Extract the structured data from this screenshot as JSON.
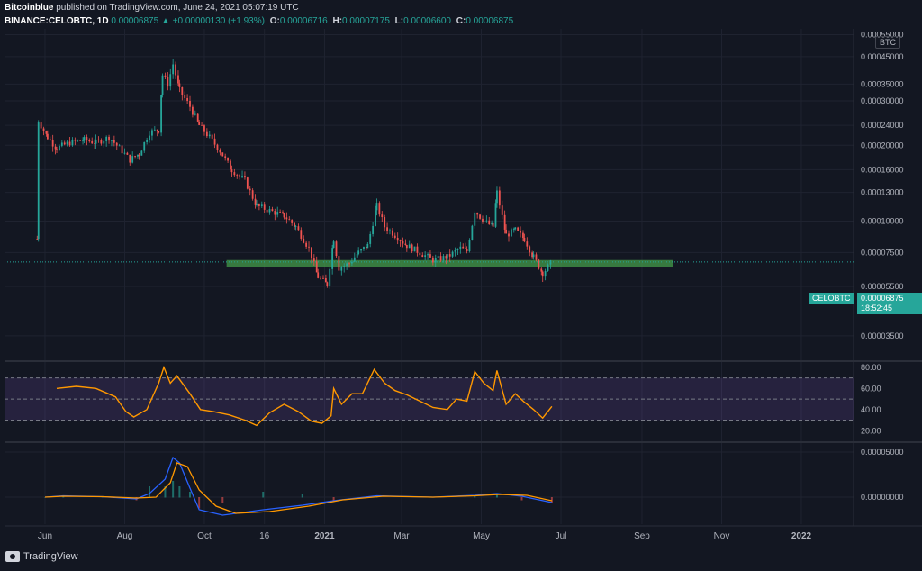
{
  "header": {
    "author": "Bitcoinblue",
    "published": "published on TradingView.com, June 24, 2021 05:07:19 UTC",
    "symbol": "BINANCE:CELOBTC, 1D",
    "last": "0.00006875",
    "change": "+0.00000130 (+1.93%)",
    "o_label": "O:",
    "o_value": "0.00006716",
    "h_label": "H:",
    "h_value": "0.00007175",
    "l_label": "L:",
    "l_value": "0.00006600",
    "c_label": "C:",
    "c_value": "0.00006875",
    "change_icon": "triangle-up-icon"
  },
  "axis": {
    "currency": "BTC",
    "price_labels": [
      "0.00055000",
      "0.00045000",
      "0.00035000",
      "0.00030000",
      "0.00024000",
      "0.00020000",
      "0.00016000",
      "0.00013000",
      "0.00010000",
      "0.00007500",
      "0.00005500",
      "0.00003500"
    ],
    "rsi_labels": [
      "80.00",
      "60.00",
      "40.00",
      "20.00"
    ],
    "macd_labels": [
      "0.00005000",
      "0.00000000"
    ],
    "time_labels": [
      "Jun",
      "Aug",
      "Oct",
      "16",
      "2021",
      "Mar",
      "May",
      "Jul",
      "Sep",
      "Nov",
      "2022"
    ]
  },
  "price_tag": {
    "symbol": "CELOBTC",
    "value": "0.00006875",
    "countdown": "18:52:45"
  },
  "footer": {
    "brand": "TradingView",
    "brand_icon": "tradingview-logo-icon"
  },
  "colors": {
    "background": "#131722",
    "up": "#26a69a",
    "down": "#ef5350",
    "rsi_line": "#ff9800",
    "rsi_band": "#7e57c2",
    "support_zone": "#4caf50",
    "macd_line": "#2962ff",
    "signal_line": "#ff9800"
  },
  "chart_data": [
    {
      "type": "candlestick",
      "scale": "log",
      "symbol": "BINANCE:CELOBTC",
      "interval": "1D",
      "x_ticks": [
        "Jun",
        "Aug",
        "Oct",
        "16",
        "2021",
        "Mar",
        "May",
        "Jul",
        "Sep",
        "Nov",
        "2022"
      ],
      "y_ticks": [
        0.00055,
        0.00045,
        0.00035,
        0.0003,
        0.00024,
        0.0002,
        0.00016,
        0.00013,
        0.0001,
        7.5e-05,
        5.5e-05,
        3.5e-05
      ],
      "ylim": [
        2.8e-05,
        0.00058
      ],
      "support_zone": [
        6.55e-05,
        7e-05
      ],
      "last_price": 6.875e-05,
      "close_series": [
        [
          "2020-05-26",
          8.5e-05
        ],
        [
          "2020-05-27",
          0.00025
        ],
        [
          "2020-06-03",
          0.000215
        ],
        [
          "2020-06-10",
          0.000195
        ],
        [
          "2020-06-20",
          0.000205
        ],
        [
          "2020-07-01",
          0.00021
        ],
        [
          "2020-07-10",
          0.000205
        ],
        [
          "2020-07-20",
          0.000215
        ],
        [
          "2020-07-28",
          0.000195
        ],
        [
          "2020-08-05",
          0.000175
        ],
        [
          "2020-08-12",
          0.000185
        ],
        [
          "2020-08-20",
          0.000225
        ],
        [
          "2020-08-27",
          0.00023
        ],
        [
          "2020-08-30",
          0.00038
        ],
        [
          "2020-09-03",
          0.00035
        ],
        [
          "2020-09-07",
          0.00042
        ],
        [
          "2020-09-12",
          0.00033
        ],
        [
          "2020-09-20",
          0.000285
        ],
        [
          "2020-09-27",
          0.00024
        ],
        [
          "2020-10-05",
          0.000215
        ],
        [
          "2020-10-13",
          0.00019
        ],
        [
          "2020-10-22",
          0.00016
        ],
        [
          "2020-11-01",
          0.000145
        ],
        [
          "2020-11-10",
          0.000115
        ],
        [
          "2020-11-20",
          0.00011
        ],
        [
          "2020-12-01",
          0.000105
        ],
        [
          "2020-12-10",
          9.5e-05
        ],
        [
          "2020-12-20",
          7.8e-05
        ],
        [
          "2020-12-27",
          6e-05
        ],
        [
          "2021-01-03",
          5.6e-05
        ],
        [
          "2021-01-08",
          8.5e-05
        ],
        [
          "2021-01-12",
          6.5e-05
        ],
        [
          "2021-01-20",
          6.8e-05
        ],
        [
          "2021-01-27",
          7.5e-05
        ],
        [
          "2021-02-03",
          8e-05
        ],
        [
          "2021-02-10",
          0.000115
        ],
        [
          "2021-02-16",
          9.5e-05
        ],
        [
          "2021-02-24",
          8.8e-05
        ],
        [
          "2021-03-05",
          8e-05
        ],
        [
          "2021-03-15",
          7.5e-05
        ],
        [
          "2021-03-25",
          7e-05
        ],
        [
          "2021-04-05",
          7.2e-05
        ],
        [
          "2021-04-15",
          7.8e-05
        ],
        [
          "2021-04-20",
          7.6e-05
        ],
        [
          "2021-04-26",
          0.00011
        ],
        [
          "2021-05-03",
          0.0001
        ],
        [
          "2021-05-10",
          9.5e-05
        ],
        [
          "2021-05-13",
          0.00013
        ],
        [
          "2021-05-20",
          8.8e-05
        ],
        [
          "2021-05-27",
          9.2e-05
        ],
        [
          "2021-06-03",
          8.5e-05
        ],
        [
          "2021-06-10",
          7.2e-05
        ],
        [
          "2021-06-17",
          6.2e-05
        ],
        [
          "2021-06-24",
          6.875e-05
        ]
      ]
    },
    {
      "type": "line",
      "name": "",
      "y_ticks": [
        80,
        60,
        40,
        20
      ],
      "ylim": [
        10,
        85
      ],
      "band": [
        30,
        70
      ],
      "midline": 50,
      "series": [
        [
          "2020-06-10",
          60
        ],
        [
          "2020-06-25",
          62
        ],
        [
          "2020-07-10",
          60
        ],
        [
          "2020-07-25",
          52
        ],
        [
          "2020-08-02",
          38
        ],
        [
          "2020-08-08",
          33
        ],
        [
          "2020-08-18",
          40
        ],
        [
          "2020-08-27",
          65
        ],
        [
          "2020-08-31",
          80
        ],
        [
          "2020-09-05",
          65
        ],
        [
          "2020-09-10",
          72
        ],
        [
          "2020-09-20",
          55
        ],
        [
          "2020-09-28",
          40
        ],
        [
          "2020-10-08",
          38
        ],
        [
          "2020-10-20",
          35
        ],
        [
          "2020-11-01",
          30
        ],
        [
          "2020-11-10",
          25
        ],
        [
          "2020-11-20",
          37
        ],
        [
          "2020-12-01",
          45
        ],
        [
          "2020-12-12",
          38
        ],
        [
          "2020-12-22",
          29
        ],
        [
          "2020-12-30",
          27
        ],
        [
          "2021-01-06",
          34
        ],
        [
          "2021-01-08",
          60
        ],
        [
          "2021-01-14",
          45
        ],
        [
          "2021-01-22",
          55
        ],
        [
          "2021-01-30",
          55
        ],
        [
          "2021-02-08",
          78
        ],
        [
          "2021-02-16",
          65
        ],
        [
          "2021-02-24",
          58
        ],
        [
          "2021-03-05",
          54
        ],
        [
          "2021-03-15",
          48
        ],
        [
          "2021-03-25",
          42
        ],
        [
          "2021-04-05",
          40
        ],
        [
          "2021-04-12",
          50
        ],
        [
          "2021-04-20",
          48
        ],
        [
          "2021-04-26",
          76
        ],
        [
          "2021-05-03",
          65
        ],
        [
          "2021-05-10",
          58
        ],
        [
          "2021-05-13",
          77
        ],
        [
          "2021-05-20",
          45
        ],
        [
          "2021-05-27",
          55
        ],
        [
          "2021-06-03",
          47
        ],
        [
          "2021-06-10",
          40
        ],
        [
          "2021-06-17",
          32
        ],
        [
          "2021-06-24",
          43
        ]
      ]
    },
    {
      "type": "line",
      "y_ticks": [
        5e-05,
        0
      ],
      "ylim": [
        -3e-05,
        6e-05
      ],
      "series": [
        {
          "name": "",
          "values": [
            [
              "2020-06-01",
              0.0
            ],
            [
              "2020-06-15",
              1.5e-06
            ],
            [
              "2020-07-15",
              5e-07
            ],
            [
              "2020-08-10",
              -2e-06
            ],
            [
              "2020-08-20",
              4e-06
            ],
            [
              "2020-09-01",
              2e-05
            ],
            [
              "2020-09-07",
              4.4e-05
            ],
            [
              "2020-09-12",
              3.8e-05
            ],
            [
              "2020-09-20",
              1e-05
            ],
            [
              "2020-09-27",
              -1.4e-05
            ],
            [
              "2020-10-15",
              -2e-05
            ],
            [
              "2020-11-15",
              -1.4e-05
            ],
            [
              "2020-12-15",
              -9e-06
            ],
            [
              "2021-01-08",
              -4e-06
            ],
            [
              "2021-02-10",
              1.5e-06
            ],
            [
              "2021-03-25",
              0.0
            ],
            [
              "2021-04-26",
              2e-06
            ],
            [
              "2021-05-13",
              4e-06
            ],
            [
              "2021-06-01",
              1e-06
            ],
            [
              "2021-06-24",
              -6e-06
            ]
          ]
        },
        {
          "name": "",
          "values": [
            [
              "2020-06-01",
              0.0
            ],
            [
              "2020-06-15",
              1e-06
            ],
            [
              "2020-07-15",
              5e-07
            ],
            [
              "2020-08-10",
              -1e-06
            ],
            [
              "2020-08-25",
              0.0
            ],
            [
              "2020-09-05",
              1.6e-05
            ],
            [
              "2020-09-10",
              3.8e-05
            ],
            [
              "2020-09-18",
              3.4e-05
            ],
            [
              "2020-09-27",
              8e-06
            ],
            [
              "2020-10-10",
              -1e-05
            ],
            [
              "2020-10-25",
              -1.8e-05
            ],
            [
              "2020-11-20",
              -1.6e-05
            ],
            [
              "2020-12-20",
              -1e-05
            ],
            [
              "2021-01-15",
              -3e-06
            ],
            [
              "2021-02-15",
              1e-06
            ],
            [
              "2021-03-25",
              0.0
            ],
            [
              "2021-04-26",
              1.5e-06
            ],
            [
              "2021-05-15",
              3e-06
            ],
            [
              "2021-06-05",
              2e-06
            ],
            [
              "2021-06-24",
              -4e-06
            ]
          ]
        }
      ]
    }
  ]
}
